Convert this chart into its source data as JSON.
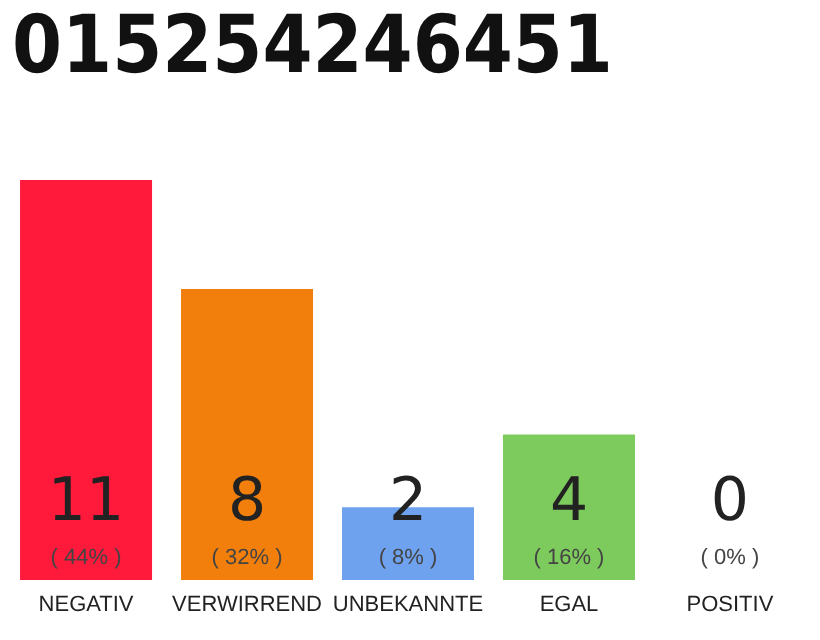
{
  "chart_data": {
    "type": "bar",
    "title": "015254246451",
    "categories": [
      "NEGATIV",
      "VERWIRREND",
      "UNBEKANNTE",
      "EGAL",
      "POSITIV"
    ],
    "values": [
      11,
      8,
      2,
      4,
      0
    ],
    "colors": [
      "#ff1a3c",
      "#f27f0c",
      "#6ea2ee",
      "#7ecb5d",
      "#b0b0b0"
    ],
    "ylim": [
      0,
      11
    ],
    "tick_labels": "x",
    "data_labels": true,
    "annotations": [
      {
        "text": "( 44% )",
        "x": "NEGATIV",
        "y": 0
      },
      {
        "text": "( 32% )",
        "x": "VERWIRREND",
        "y": 0
      },
      {
        "text": "( 8% )",
        "x": "UNBEKANNTE",
        "y": 0
      },
      {
        "text": "( 16% )",
        "x": "EGAL",
        "y": 0
      },
      {
        "text": "( 0% )",
        "x": "POSITIV",
        "y": 0
      }
    ]
  }
}
